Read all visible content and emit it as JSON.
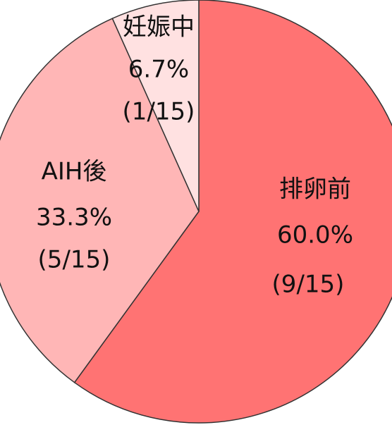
{
  "chart_data": {
    "type": "pie",
    "categories": [
      "排卵前",
      "AIH後",
      "妊娠中"
    ],
    "values": [
      60.0,
      33.3,
      6.7
    ],
    "value_labels": [
      "60.0%",
      "33.3%",
      "6.7%"
    ],
    "fraction_labels": [
      "(9/15)",
      "(5/15)",
      "(1/15)"
    ],
    "colors": [
      "#ff7373",
      "#ffb6b6",
      "#ffe1e1"
    ]
  }
}
